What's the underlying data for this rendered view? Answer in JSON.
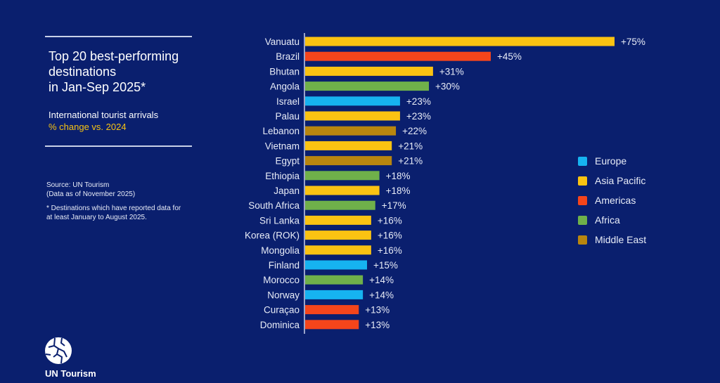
{
  "panel": {
    "title_lines": [
      "Top 20 best-performing",
      "destinations",
      "in Jan-Sep 2025*"
    ],
    "subtitle": "International tourist arrivals",
    "subtitle_accent": "% change vs. 2024",
    "source_line1": "Source: UN Tourism",
    "source_line2": "(Data as of November 2025)",
    "footnote_line1": "* Destinations which have reported data for",
    "footnote_line2": "at least January to August 2025.",
    "logo_text": "UN Tourism",
    "logo_icon": "globe-icon"
  },
  "colors": {
    "Europe": "#16b3f0",
    "Asia Pacific": "#fbc312",
    "Americas": "#f5451b",
    "Africa": "#6fb04a",
    "Middle East": "#b8860f"
  },
  "chart_data": {
    "type": "bar",
    "orientation": "horizontal",
    "title": "Top 20 best-performing destinations in Jan-Sep 2025*",
    "subtitle": "International tourist arrivals, % change vs. 2024",
    "xlabel": "",
    "ylabel": "",
    "xlim": [
      0,
      75
    ],
    "grid": false,
    "legend_position": "right",
    "value_format": "+{v}%",
    "categories": [
      "Vanuatu",
      "Brazil",
      "Bhutan",
      "Angola",
      "Israel",
      "Palau",
      "Lebanon",
      "Vietnam",
      "Egypt",
      "Ethiopia",
      "Japan",
      "South Africa",
      "Sri Lanka",
      "Korea (ROK)",
      "Mongolia",
      "Finland",
      "Morocco",
      "Norway",
      "Curaçao",
      "Dominica"
    ],
    "values": [
      75,
      45,
      31,
      30,
      23,
      23,
      22,
      21,
      21,
      18,
      18,
      17,
      16,
      16,
      16,
      15,
      14,
      14,
      13,
      13
    ],
    "regions": [
      "Asia Pacific",
      "Americas",
      "Asia Pacific",
      "Africa",
      "Europe",
      "Asia Pacific",
      "Middle East",
      "Asia Pacific",
      "Middle East",
      "Africa",
      "Asia Pacific",
      "Africa",
      "Asia Pacific",
      "Asia Pacific",
      "Asia Pacific",
      "Europe",
      "Africa",
      "Europe",
      "Americas",
      "Americas"
    ],
    "data_labels": [
      "+75%",
      "+45%",
      "+31%",
      "+30%",
      "+23%",
      "+23%",
      "+22%",
      "+21%",
      "+21%",
      "+18%",
      "+18%",
      "+17%",
      "+16%",
      "+16%",
      "+16%",
      "+15%",
      "+14%",
      "+14%",
      "+13%",
      "+13%"
    ],
    "legend": [
      "Europe",
      "Asia Pacific",
      "Americas",
      "Africa",
      "Middle East"
    ]
  }
}
